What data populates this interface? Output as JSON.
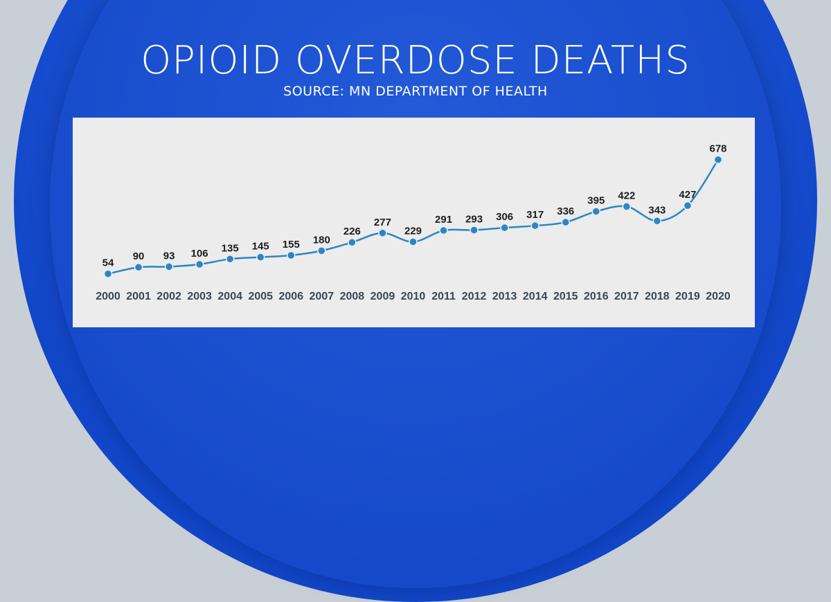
{
  "title": "OPIOID OVERDOSE DEATHS",
  "subtitle": "SOURCE: MN DEPARTMENT OF HEALTH",
  "colors": {
    "line": "#2a86c4",
    "point": "#2a86c4",
    "panel": "#ececec",
    "background": "#1549c9"
  },
  "chart_data": {
    "type": "line",
    "title": "OPIOID OVERDOSE DEATHS",
    "subtitle": "SOURCE: MN DEPARTMENT OF HEALTH",
    "categories": [
      "2000",
      "2001",
      "2002",
      "2003",
      "2004",
      "2005",
      "2006",
      "2007",
      "2008",
      "2009",
      "2010",
      "2011",
      "2012",
      "2013",
      "2014",
      "2015",
      "2016",
      "2017",
      "2018",
      "2019",
      "2020"
    ],
    "values": [
      54,
      90,
      93,
      106,
      135,
      145,
      155,
      180,
      226,
      277,
      229,
      291,
      293,
      306,
      317,
      336,
      395,
      422,
      343,
      427,
      678
    ],
    "xlabel": "",
    "ylabel": "",
    "grid": false,
    "data_labels": true,
    "smooth": true
  }
}
